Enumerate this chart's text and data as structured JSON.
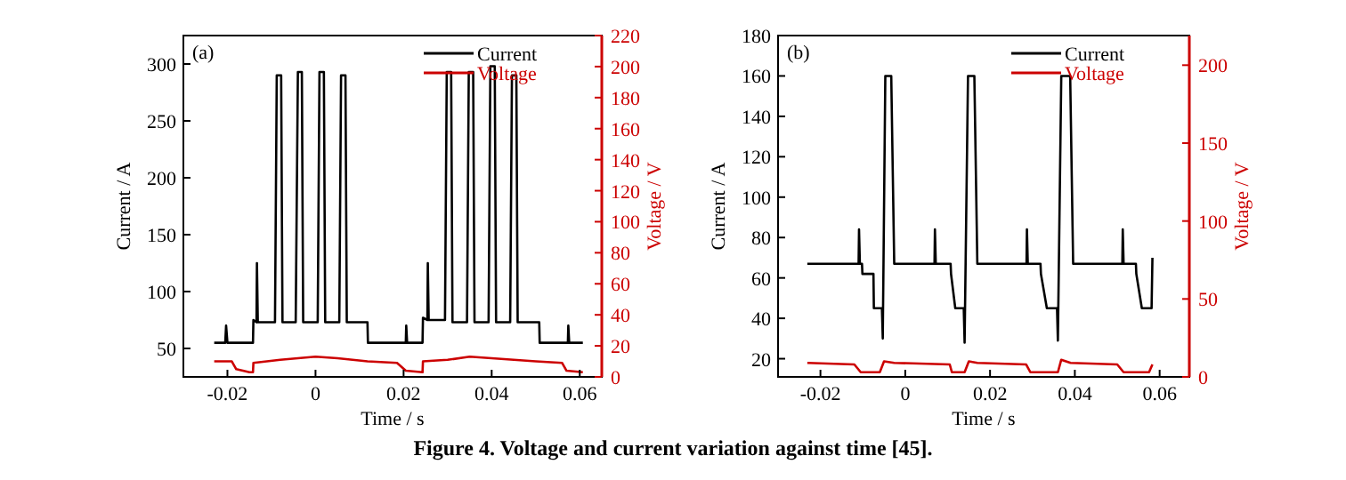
{
  "chart_data": [
    {
      "type": "line",
      "annotations": [
        "(a)",
        "Figure 4. Voltage and current variation against time [45]."
      ],
      "xlabel": "Time / s",
      "ylabel": "Current / A",
      "y2label": "Voltage / V",
      "xlim": [
        -0.03,
        0.065
      ],
      "xticks": [
        -0.02,
        0,
        0.02,
        0.04,
        0.06
      ],
      "ylim": [
        25,
        325
      ],
      "yticks": [
        50,
        100,
        150,
        200,
        250,
        300
      ],
      "y2lim": [
        0,
        220
      ],
      "y2ticks": [
        0,
        20,
        40,
        60,
        80,
        100,
        120,
        140,
        160,
        180,
        200,
        220
      ],
      "legend": "top right",
      "grid": false,
      "series": [
        {
          "name": "Current",
          "color": "#000000",
          "x": [
            -0.023,
            -0.0205,
            -0.0203,
            -0.02,
            -0.0142,
            -0.0141,
            -0.0134,
            -0.0133,
            -0.0131,
            -0.0092,
            -0.0088,
            -0.0078,
            -0.0075,
            -0.0045,
            -0.004,
            -0.0031,
            -0.0028,
            0.0005,
            0.0009,
            0.0019,
            0.0022,
            0.0054,
            0.0058,
            0.0068,
            0.0071,
            0.0118,
            0.0119,
            0.0205,
            0.0206,
            0.0208,
            0.0243,
            0.0244,
            0.0254,
            0.0255,
            0.0257,
            0.0294,
            0.0298,
            0.0308,
            0.0311,
            0.0344,
            0.0348,
            0.0358,
            0.0361,
            0.0393,
            0.0397,
            0.0407,
            0.041,
            0.0442,
            0.0446,
            0.0456,
            0.0459,
            0.0508,
            0.0509,
            0.0573,
            0.0574,
            0.0576,
            0.0607
          ],
          "values": [
            55,
            55,
            70,
            55,
            55,
            75,
            73,
            125,
            73,
            73,
            290,
            290,
            73,
            73,
            293,
            293,
            73,
            73,
            293,
            293,
            73,
            73,
            290,
            290,
            73,
            73,
            55,
            55,
            70,
            55,
            55,
            77,
            75,
            125,
            75,
            75,
            293,
            293,
            73,
            73,
            293,
            293,
            73,
            73,
            298,
            298,
            73,
            73,
            290,
            290,
            73,
            73,
            55,
            55,
            70,
            55,
            55
          ]
        },
        {
          "name": "Voltage",
          "color": "#cc0000",
          "axis": "y2",
          "x": [
            -0.023,
            -0.019,
            -0.018,
            -0.015,
            -0.0142,
            -0.0141,
            -0.008,
            0,
            0.005,
            0.0118,
            0.0185,
            0.0205,
            0.0243,
            0.0244,
            0.03,
            0.035,
            0.04,
            0.05,
            0.056,
            0.057,
            0.0607
          ],
          "values": [
            10,
            10,
            5,
            3,
            3,
            9,
            11,
            13,
            12,
            10,
            9,
            4,
            3,
            10,
            11,
            13,
            12,
            10,
            9,
            4,
            3
          ]
        }
      ]
    },
    {
      "type": "line",
      "annotations": [
        "(b)"
      ],
      "xlabel": "Time / s",
      "ylabel": "Current / A",
      "y2label": "Voltage / V",
      "xlim": [
        -0.03,
        0.067
      ],
      "xticks": [
        -0.02,
        0,
        0.02,
        0.04,
        0.06
      ],
      "ylim": [
        11,
        180
      ],
      "yticks": [
        20,
        40,
        60,
        80,
        100,
        120,
        140,
        160,
        180
      ],
      "y2lim": [
        0,
        219
      ],
      "y2ticks": [
        0,
        50,
        100,
        150,
        200
      ],
      "legend": "top right",
      "grid": false,
      "series": [
        {
          "name": "Current",
          "color": "#000000",
          "x": [
            -0.0231,
            -0.011,
            -0.0109,
            -0.0107,
            -0.0102,
            -0.0101,
            -0.0075,
            -0.0074,
            -0.0055,
            -0.0053,
            -0.0047,
            -0.0033,
            -0.0026,
            0.0069,
            0.007,
            0.0072,
            0.0107,
            0.0108,
            0.0118,
            0.0138,
            0.014,
            0.0148,
            0.0163,
            0.017,
            0.0286,
            0.0287,
            0.0289,
            0.0319,
            0.032,
            0.0334,
            0.0358,
            0.036,
            0.0368,
            0.0389,
            0.0396,
            0.0512,
            0.0513,
            0.0515,
            0.0544,
            0.0545,
            0.0558,
            0.0581,
            0.0583
          ],
          "values": [
            67,
            67,
            84,
            67,
            67,
            62,
            62,
            45,
            45,
            30,
            160,
            160,
            67,
            67,
            84,
            67,
            67,
            62,
            45,
            45,
            28,
            160,
            160,
            67,
            67,
            84,
            67,
            67,
            62,
            45,
            45,
            29,
            160,
            160,
            67,
            67,
            84,
            67,
            67,
            62,
            45,
            45,
            70
          ]
        },
        {
          "name": "Voltage",
          "color": "#cc0000",
          "axis": "y2",
          "x": [
            -0.0231,
            -0.012,
            -0.0105,
            -0.006,
            -0.005,
            -0.0026,
            0.0105,
            0.011,
            0.014,
            0.015,
            0.017,
            0.0285,
            0.0295,
            0.036,
            0.0368,
            0.039,
            0.05,
            0.0515,
            0.0575,
            0.0583
          ],
          "values": [
            9,
            8,
            3,
            3,
            10,
            9,
            8,
            3,
            3,
            10,
            9,
            8,
            3,
            3,
            11,
            9,
            8,
            3,
            3,
            8
          ]
        }
      ]
    }
  ]
}
